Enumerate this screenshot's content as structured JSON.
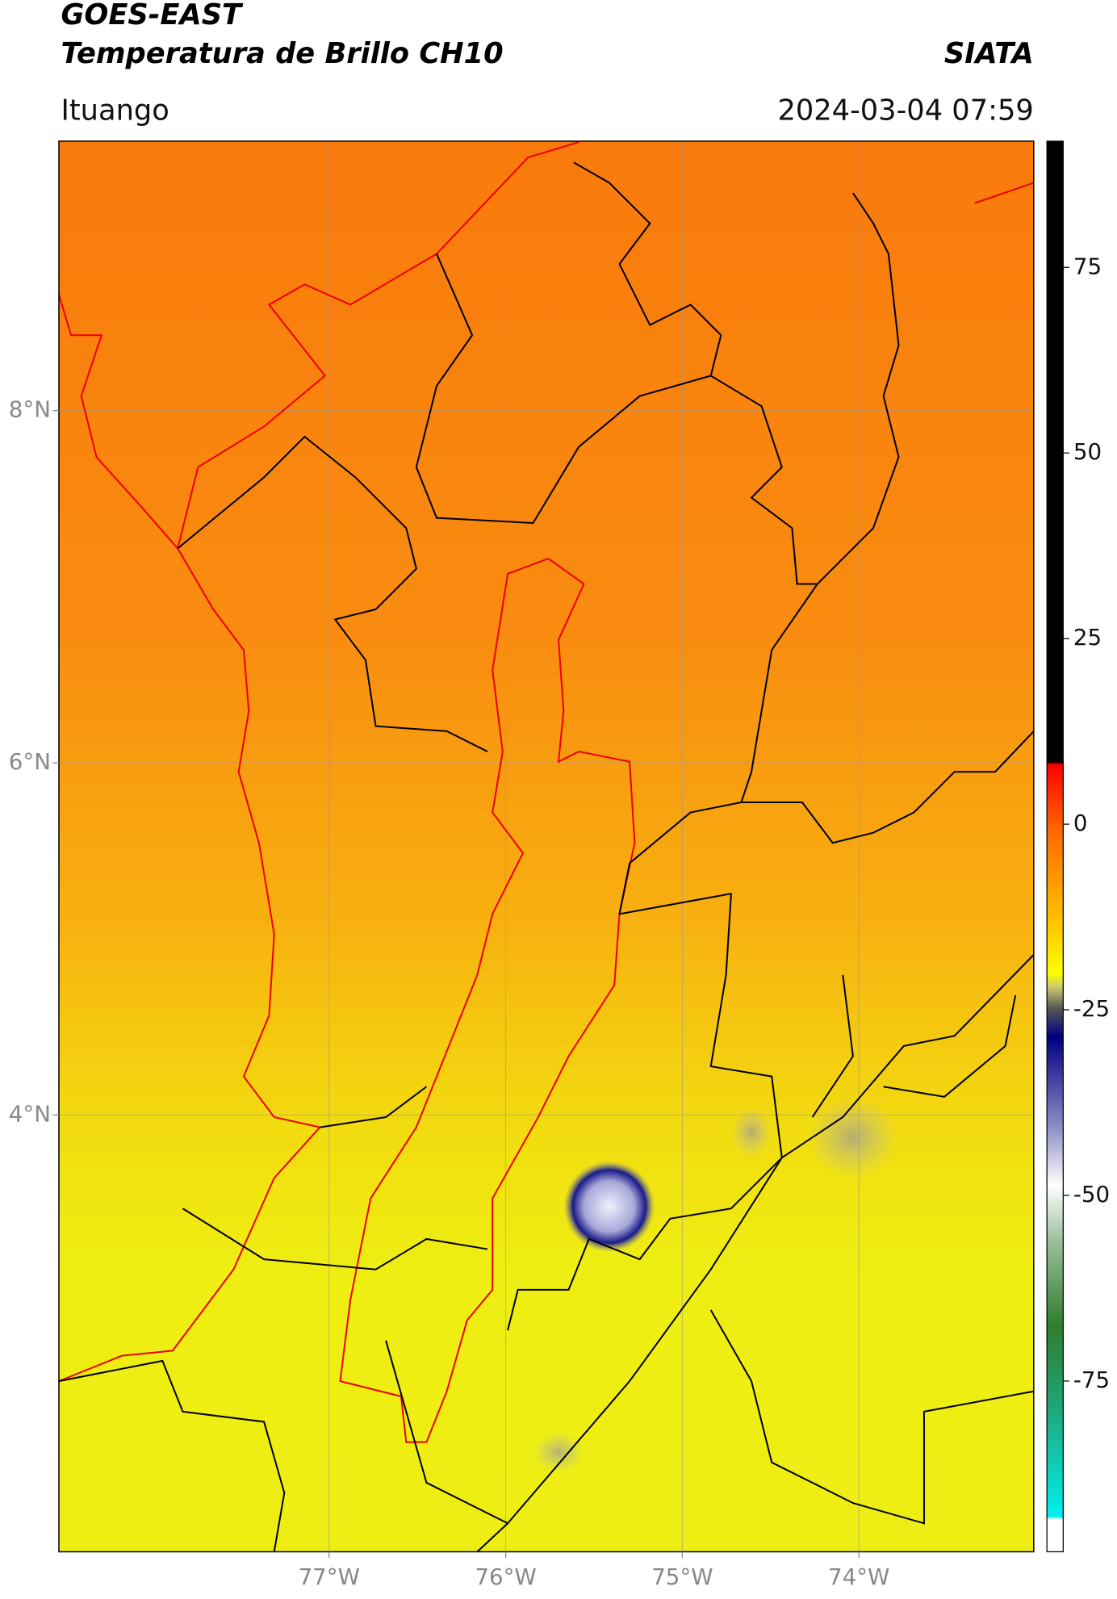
{
  "chart_data": {
    "type": "map",
    "title": "GOES-EAST",
    "subtitle": "Temperatura de Brillo CH10",
    "source": "SIATA",
    "location": "Ituango",
    "timestamp": "2024-03-04 07:59",
    "xlim": [
      -78.53,
      -73.01
    ],
    "ylim": [
      1.52,
      9.53
    ],
    "xticks": [
      {
        "value": -77,
        "label": "77°W"
      },
      {
        "value": -76,
        "label": "76°W"
      },
      {
        "value": -75,
        "label": "75°W"
      },
      {
        "value": -74,
        "label": "74°W"
      }
    ],
    "yticks": [
      {
        "value": 4,
        "label": "4°N"
      },
      {
        "value": 6,
        "label": "6°N"
      },
      {
        "value": 8,
        "label": "8°N"
      }
    ],
    "grid": true,
    "colorbar": {
      "lim": [
        -98,
        92
      ],
      "ticks": [
        -75,
        -50,
        -25,
        0,
        25,
        50,
        75
      ]
    }
  }
}
